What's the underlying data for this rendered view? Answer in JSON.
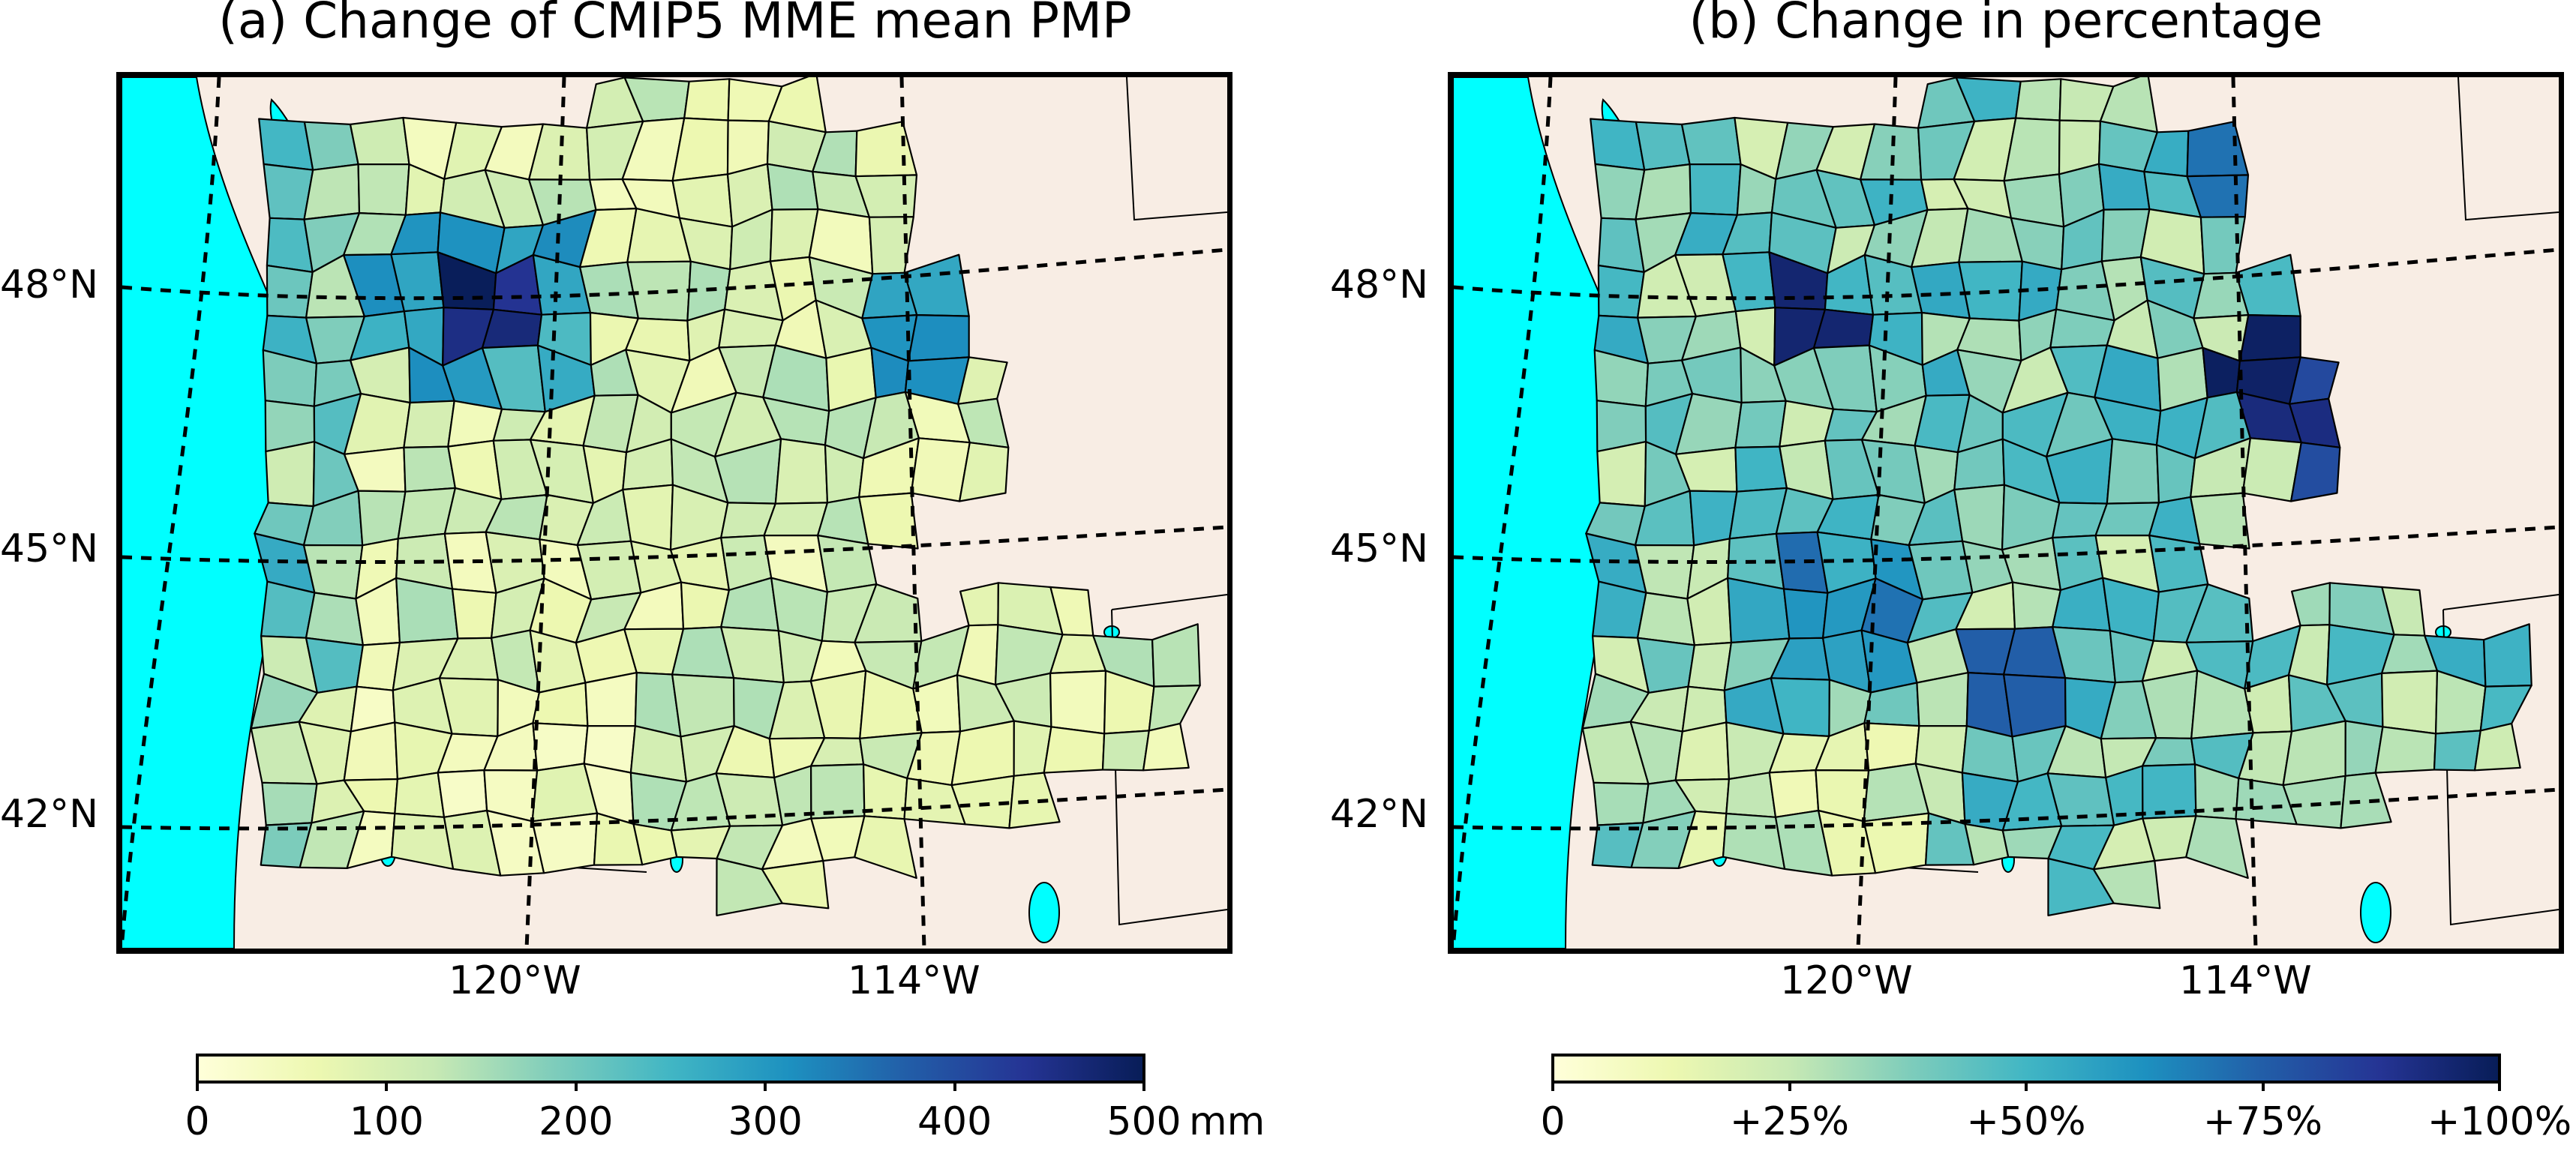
{
  "panels": [
    {
      "title": "(a) Change of CMIP5 MME mean PMP",
      "lat_labels": [
        "48°N",
        "45°N",
        "42°N"
      ],
      "lon_labels": [
        "120°W",
        "114°W"
      ],
      "colorbar": {
        "ticks": [
          "0",
          "100",
          "200",
          "300",
          "400",
          "500"
        ],
        "unit": "mm"
      }
    },
    {
      "title": "(b) Change in percentage",
      "lat_labels": [
        "48°N",
        "45°N",
        "42°N"
      ],
      "lon_labels": [
        "120°W",
        "114°W"
      ],
      "colorbar": {
        "ticks": [
          "0",
          "+25%",
          "+50%",
          "+75%",
          "+100%"
        ],
        "unit": ""
      }
    }
  ],
  "colors": {
    "ocean": "#00ffff",
    "land": "#f8ede4",
    "colormap": "YlGnBu",
    "colormap_stops": [
      "#ffffd9",
      "#edf8b1",
      "#c7e9b4",
      "#7fcdbb",
      "#41b6c4",
      "#1d91c0",
      "#225ea8",
      "#253494",
      "#081d58"
    ]
  }
}
